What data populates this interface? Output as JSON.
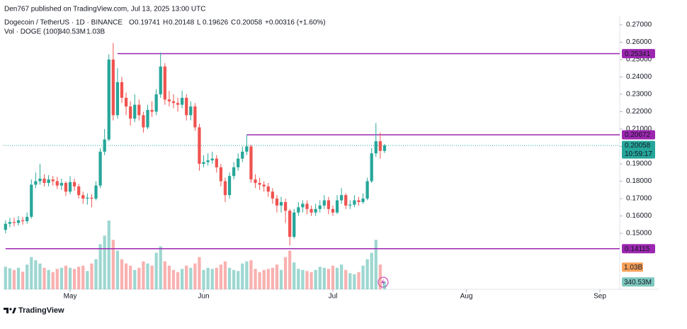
{
  "chart_data": {
    "type": "candlestick",
    "publisher": "Den767 published on TradingView.com, Jul 13, 2025 13:00 UTC",
    "symbol": "Dogecoin / TetherUS · 1D · BINANCE",
    "ohlc_labels": [
      "O",
      "H",
      "L",
      "C"
    ],
    "change": "+0.00316 (+1.60%)",
    "volume_title": "Vol · DOGE (100)",
    "volume_last_label": "340.53M",
    "volume_ma": 1030,
    "volume_ma_label": "1.03B",
    "countdown": "10:59:17",
    "brand": "TradingView",
    "up_color": "#26a69a",
    "down_color": "#ef5350",
    "level_color": "#9c27b0",
    "grid": false,
    "open": [
      0.152,
      0.1555,
      0.1565,
      0.156,
      0.1575,
      0.157,
      0.1595,
      0.178,
      0.18,
      0.1815,
      0.179,
      0.181,
      0.18,
      0.1775,
      0.179,
      0.174,
      0.1795,
      0.177,
      0.172,
      0.17,
      0.1705,
      0.17,
      0.1775,
      0.197,
      0.204,
      0.25,
      0.218,
      0.237,
      0.228,
      0.223,
      0.216,
      0.224,
      0.218,
      0.211,
      0.221,
      0.22,
      0.23,
      0.246,
      0.227,
      0.226,
      0.225,
      0.224,
      0.228,
      0.218,
      0.223,
      0.211,
      0.19,
      0.191,
      0.192,
      0.193,
      0.188,
      0.18,
      0.172,
      0.183,
      0.188,
      0.193,
      0.197,
      0.2,
      0.181,
      0.179,
      0.178,
      0.177,
      0.174,
      0.17,
      0.166,
      0.168,
      0.163,
      0.148,
      0.162,
      0.165,
      0.167,
      0.164,
      0.162,
      0.164,
      0.166,
      0.169,
      0.164,
      0.162,
      0.169,
      0.172,
      0.166,
      0.1665,
      0.169,
      0.168,
      0.17,
      0.18,
      0.196,
      0.203,
      0.19741
    ],
    "high": [
      0.1575,
      0.159,
      0.159,
      0.16,
      0.1595,
      0.162,
      0.181,
      0.185,
      0.19,
      0.184,
      0.1835,
      0.183,
      0.1825,
      0.1815,
      0.18,
      0.183,
      0.1815,
      0.1785,
      0.174,
      0.173,
      0.1725,
      0.18,
      0.199,
      0.21,
      0.253,
      0.2595,
      0.245,
      0.24,
      0.231,
      0.226,
      0.23,
      0.227,
      0.22,
      0.224,
      0.226,
      0.233,
      0.254,
      0.248,
      0.232,
      0.23,
      0.228,
      0.232,
      0.23,
      0.226,
      0.225,
      0.213,
      0.195,
      0.196,
      0.197,
      0.195,
      0.19,
      0.182,
      0.185,
      0.191,
      0.196,
      0.2,
      0.2067,
      0.201,
      0.184,
      0.182,
      0.18,
      0.179,
      0.176,
      0.172,
      0.171,
      0.17,
      0.164,
      0.164,
      0.168,
      0.169,
      0.169,
      0.166,
      0.167,
      0.169,
      0.172,
      0.171,
      0.166,
      0.172,
      0.176,
      0.173,
      0.169,
      0.172,
      0.171,
      0.173,
      0.182,
      0.199,
      0.2135,
      0.208,
      0.20148
    ],
    "low": [
      0.15,
      0.1535,
      0.154,
      0.1545,
      0.155,
      0.1555,
      0.1585,
      0.176,
      0.178,
      0.177,
      0.177,
      0.1775,
      0.1755,
      0.175,
      0.1715,
      0.1725,
      0.1745,
      0.17,
      0.167,
      0.1665,
      0.165,
      0.169,
      0.176,
      0.195,
      0.203,
      0.215,
      0.216,
      0.225,
      0.218,
      0.212,
      0.214,
      0.215,
      0.208,
      0.21,
      0.217,
      0.218,
      0.228,
      0.224,
      0.223,
      0.222,
      0.22,
      0.222,
      0.215,
      0.215,
      0.209,
      0.186,
      0.188,
      0.189,
      0.19,
      0.185,
      0.177,
      0.168,
      0.17,
      0.181,
      0.186,
      0.191,
      0.195,
      0.179,
      0.176,
      0.175,
      0.174,
      0.171,
      0.167,
      0.162,
      0.162,
      0.156,
      0.143,
      0.147,
      0.16,
      0.162,
      0.161,
      0.16,
      0.16,
      0.162,
      0.164,
      0.161,
      0.16,
      0.161,
      0.167,
      0.164,
      0.164,
      0.165,
      0.166,
      0.167,
      0.169,
      0.179,
      0.194,
      0.193,
      0.19626
    ],
    "close": [
      0.1555,
      0.1565,
      0.156,
      0.1575,
      0.157,
      0.1595,
      0.178,
      0.18,
      0.1815,
      0.179,
      0.181,
      0.18,
      0.1775,
      0.179,
      0.174,
      0.1795,
      0.177,
      0.172,
      0.17,
      0.1705,
      0.17,
      0.1775,
      0.197,
      0.204,
      0.25,
      0.218,
      0.237,
      0.228,
      0.223,
      0.216,
      0.224,
      0.218,
      0.211,
      0.221,
      0.22,
      0.23,
      0.246,
      0.227,
      0.226,
      0.225,
      0.224,
      0.228,
      0.218,
      0.223,
      0.211,
      0.19,
      0.191,
      0.192,
      0.193,
      0.188,
      0.18,
      0.172,
      0.183,
      0.188,
      0.193,
      0.197,
      0.2,
      0.181,
      0.179,
      0.178,
      0.177,
      0.174,
      0.17,
      0.166,
      0.168,
      0.163,
      0.148,
      0.162,
      0.165,
      0.167,
      0.164,
      0.162,
      0.164,
      0.166,
      0.169,
      0.164,
      0.162,
      0.169,
      0.172,
      0.166,
      0.1665,
      0.169,
      0.168,
      0.17,
      0.18,
      0.196,
      0.203,
      0.19741,
      0.20058
    ],
    "volume": [
      1050,
      980,
      900,
      1000,
      820,
      1150,
      1500,
      1350,
      1200,
      1000,
      900,
      800,
      950,
      1000,
      1100,
      1000,
      950,
      1050,
      1100,
      850,
      1200,
      1400,
      2100,
      2500,
      3200,
      2300,
      1800,
      1400,
      1200,
      1100,
      900,
      1000,
      1300,
      1200,
      1100,
      1700,
      2000,
      1300,
      1100,
      900,
      800,
      950,
      1100,
      1000,
      1200,
      1500,
      900,
      1000,
      950,
      1000,
      1150,
      1300,
      1000,
      900,
      850,
      1200,
      1300,
      1350,
      950,
      800,
      900,
      950,
      1000,
      1150,
      900,
      1500,
      1800,
      1250,
      950,
      900,
      850,
      800,
      900,
      1050,
      1000,
      950,
      1100,
      1000,
      1150,
      900,
      750,
      700,
      800,
      1100,
      1400,
      1700,
      2300,
      1150,
      340.53
    ],
    "levels": [
      {
        "value": 0.25341,
        "x_start": 26
      },
      {
        "value": 0.20672,
        "x_start": 56
      },
      {
        "value": 0.14115,
        "x_start": 0
      }
    ],
    "xlim": [
      -0.46,
      142.6
    ],
    "xticks": [
      {
        "value": 15,
        "label": "May"
      },
      {
        "value": 46,
        "label": "Jun"
      },
      {
        "value": 76,
        "label": "Jul"
      },
      {
        "value": 107,
        "label": "Aug"
      },
      {
        "value": 138,
        "label": "Sep"
      }
    ],
    "ylim": [
      0.1178,
      0.2753
    ],
    "yticks": [
      {
        "value": 0.15,
        "label": "0.15000"
      },
      {
        "value": 0.16,
        "label": "0.16000"
      },
      {
        "value": 0.17,
        "label": "0.17000"
      },
      {
        "value": 0.18,
        "label": "0.18000"
      },
      {
        "value": 0.19,
        "label": "0.19000"
      },
      {
        "value": 0.2,
        "label": "0.20000"
      },
      {
        "value": 0.21,
        "label": "0.21000"
      },
      {
        "value": 0.22,
        "label": "0.22000"
      },
      {
        "value": 0.23,
        "label": "0.23000"
      },
      {
        "value": 0.24,
        "label": "0.24000"
      },
      {
        "value": 0.25,
        "label": "0.25000"
      },
      {
        "value": 0.26,
        "label": "0.26000"
      },
      {
        "value": 0.27,
        "label": "0.27000"
      }
    ]
  }
}
